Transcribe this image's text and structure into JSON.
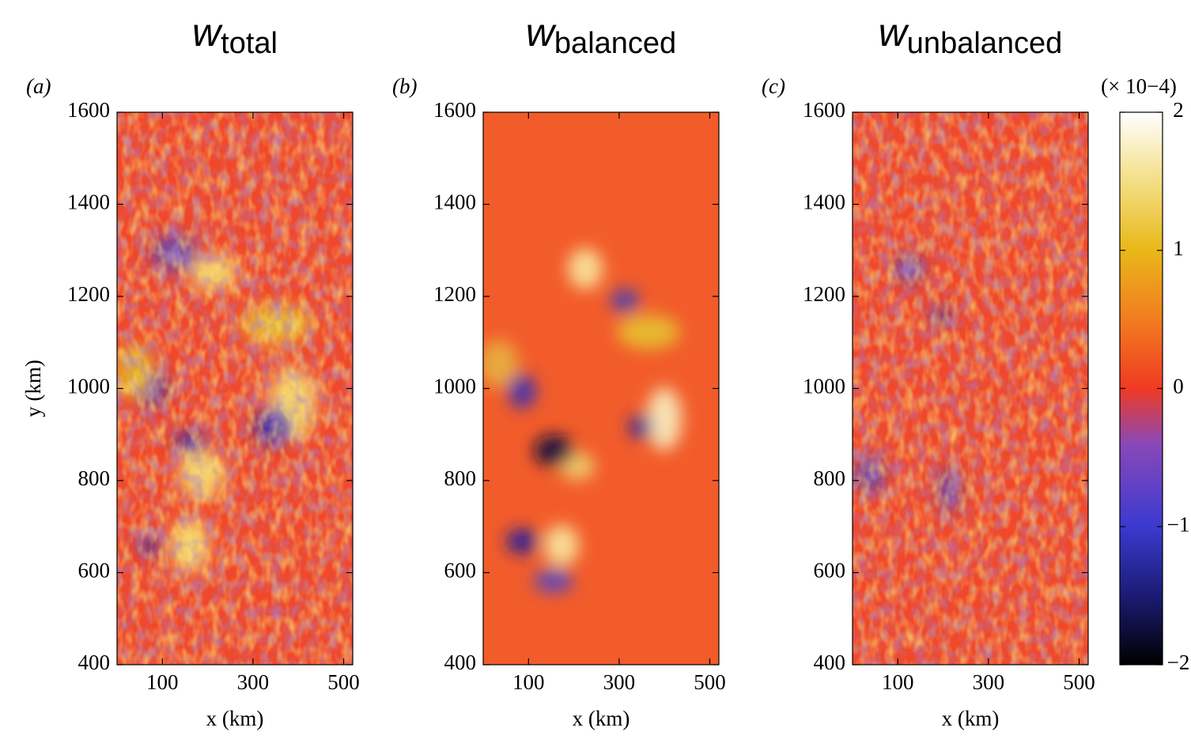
{
  "chart_data": [
    {
      "type": "heatmap",
      "title": "w",
      "title_subscript": "total",
      "panel_label": "(a)",
      "x_label": "x (km)",
      "y_label": "y (km)",
      "xlim": [
        0,
        520
      ],
      "xticks": [
        100,
        300,
        500
      ],
      "ylim": [
        400,
        1600
      ],
      "yticks": [
        400,
        600,
        800,
        1000,
        1200,
        1400,
        1600
      ]
    },
    {
      "type": "heatmap",
      "title": "w",
      "title_subscript": "balanced",
      "panel_label": "(b)",
      "x_label": "x (km)",
      "xlim": [
        0,
        520
      ],
      "xticks": [
        100,
        300,
        500
      ],
      "ylim": [
        400,
        1600
      ],
      "yticks": [
        400,
        600,
        800,
        1000,
        1200,
        1400,
        1600
      ]
    },
    {
      "type": "heatmap",
      "title": "w",
      "title_subscript": "unbalanced",
      "panel_label": "(c)",
      "x_label": "x (km)",
      "xlim": [
        0,
        520
      ],
      "xticks": [
        100,
        300,
        500
      ],
      "ylim": [
        400,
        1600
      ],
      "yticks": [
        400,
        600,
        800,
        1000,
        1200,
        1400,
        1600
      ],
      "colorbar": {
        "label": "(× 10−4)",
        "lim": [
          -2,
          2
        ],
        "ticks": [
          {
            "value": -2,
            "label": "−2"
          },
          {
            "value": -1,
            "label": "−1"
          },
          0,
          1,
          2
        ]
      }
    }
  ]
}
